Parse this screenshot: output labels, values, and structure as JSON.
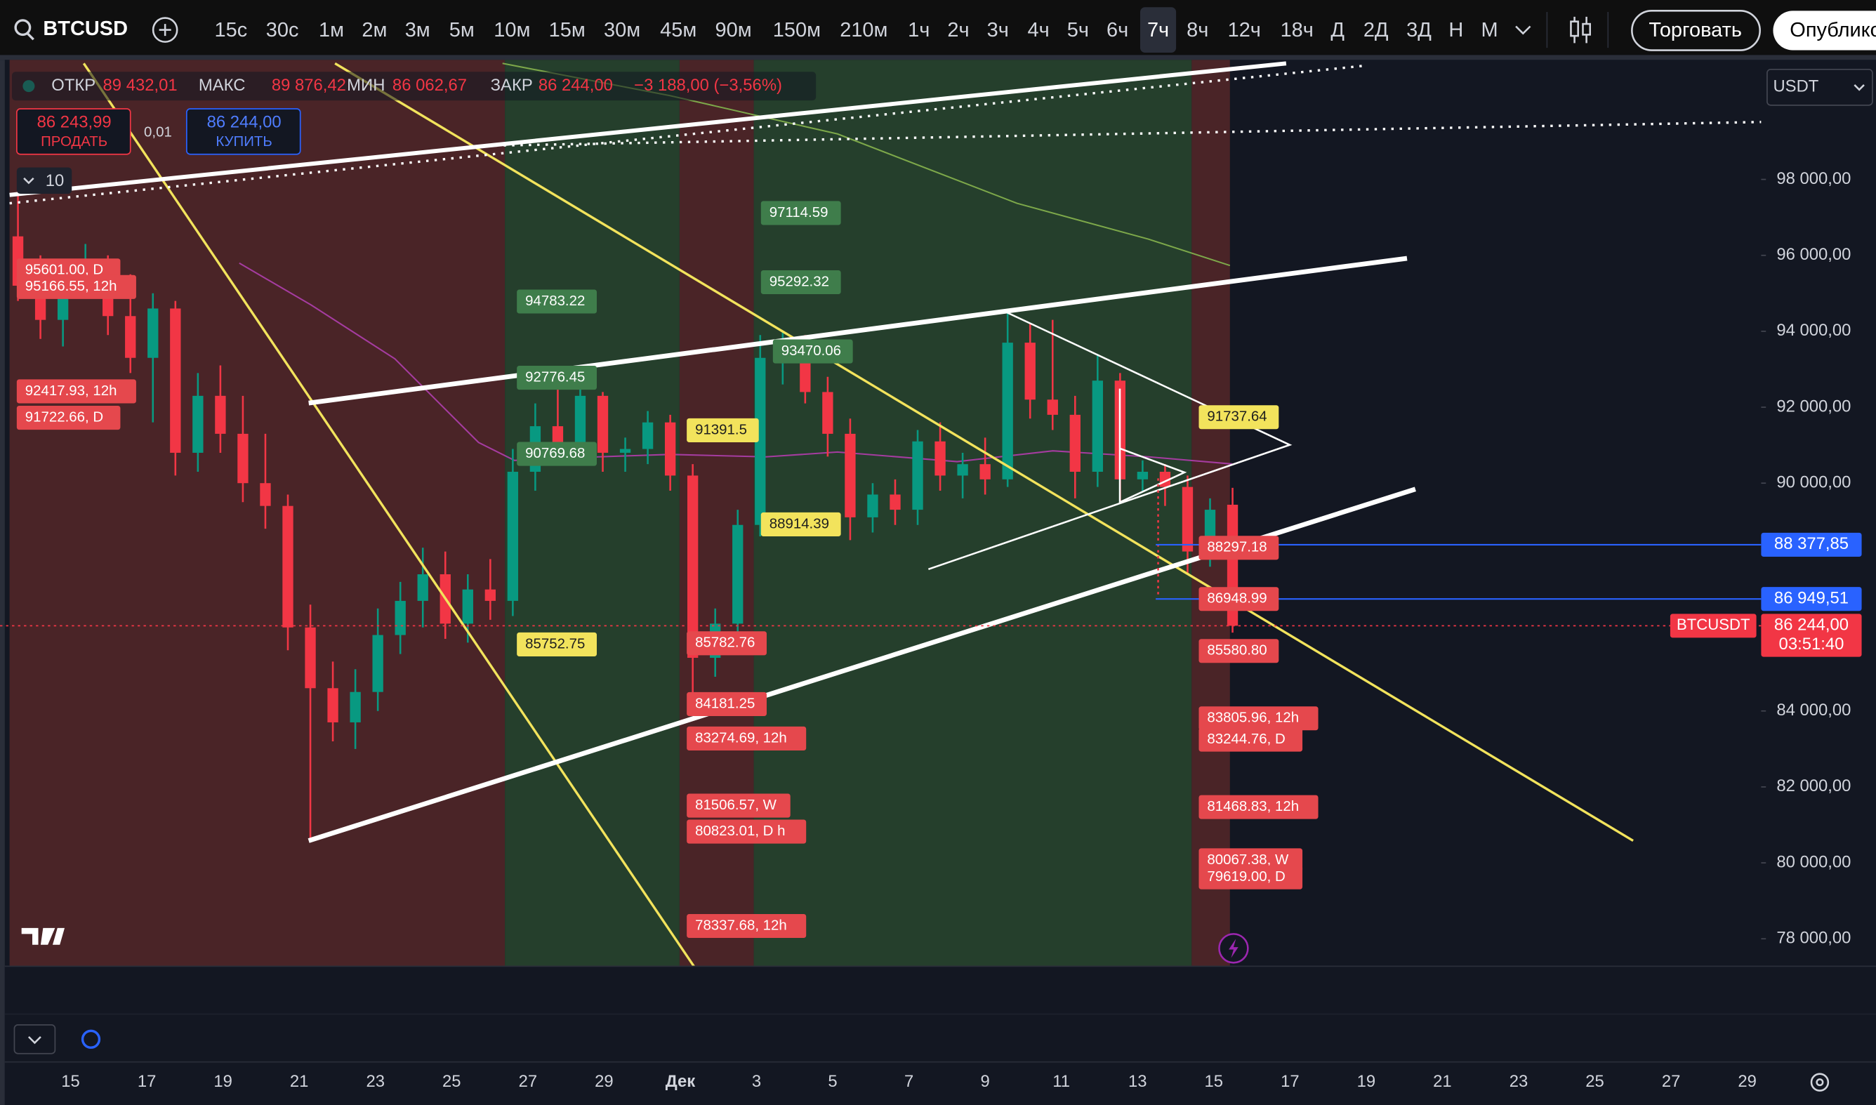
{
  "toolbar": {
    "symbol": "BTCUSD",
    "intervals": [
      "15с",
      "30с",
      "1м",
      "2м",
      "3м",
      "5м",
      "10м",
      "15м",
      "30м",
      "45м",
      "90м",
      "150м",
      "210м",
      "1ч",
      "2ч",
      "3ч",
      "4ч",
      "5ч",
      "6ч",
      "7ч",
      "8ч",
      "12ч",
      "18ч",
      "Д",
      "2Д",
      "3Д",
      "Н",
      "М"
    ],
    "active_interval": 19,
    "trade_button": "Торговать",
    "publish_button": "Опубликовать"
  },
  "legend": {
    "open_label": "ОТКР",
    "open": "89 432,01",
    "high_label": "МАКС",
    "high": "89 876,42",
    "low_label": "МИН",
    "low": "86 062,67",
    "close_label": "ЗАКР",
    "close": "86 244,00",
    "change": "−3 188,00 (−3,56%)"
  },
  "order_panel": {
    "sell_price": "86 243,99",
    "sell_label": "ПРОДАТЬ",
    "spread": "0,01",
    "buy_price": "86 244,00",
    "buy_label": "КУПИТЬ"
  },
  "indicator_toggle": "10",
  "currency": "USDT",
  "price_axis": {
    "ylim": [
      77276,
      101213
    ],
    "ticks": [
      {
        "value": 98000,
        "label": "98 000,00"
      },
      {
        "value": 96000,
        "label": "96 000,00"
      },
      {
        "value": 94000,
        "label": "94 000,00"
      },
      {
        "value": 92000,
        "label": "92 000,00"
      },
      {
        "value": 90000,
        "label": "90 000,00"
      },
      {
        "value": 84000,
        "label": "84 000,00"
      },
      {
        "value": 82000,
        "label": "82 000,00"
      },
      {
        "value": 80000,
        "label": "80 000,00"
      },
      {
        "value": 78000,
        "label": "78 000,00"
      }
    ],
    "alert_lines": [
      {
        "value": 88377.85,
        "label": "88 377,85"
      },
      {
        "value": 86949.51,
        "label": "86 949,51"
      }
    ],
    "last_price": {
      "symbol": "BTCUSDT",
      "value": 86244,
      "label": "86 244,00",
      "countdown": "03:51:40"
    }
  },
  "colors": {
    "up": "#089981",
    "down": "#f23645",
    "green": "#3f7d4b",
    "yellow": "#f2e35c",
    "red": "#e5484d",
    "alert": "#2962ff"
  },
  "price_tags": [
    {
      "label": "97114.59",
      "value": 97114.59,
      "style": "green"
    },
    {
      "label": "95292.32",
      "value": 95292.32,
      "style": "green"
    },
    {
      "label": "94783.22",
      "value": 94783.22,
      "style": "green"
    },
    {
      "label": "92776.45",
      "value": 92776.45,
      "style": "green"
    },
    {
      "label": "93470.06",
      "value": 93470.06,
      "style": "green"
    },
    {
      "label": "90769.68",
      "value": 90769.68,
      "style": "green"
    },
    {
      "label": "91391.5",
      "value": 91391.5,
      "style": "yellow"
    },
    {
      "label": "88914.39",
      "value": 88914.39,
      "style": "yellow"
    },
    {
      "label": "85752.75",
      "value": 85752.75,
      "style": "yellow"
    },
    {
      "label": "91737.64",
      "value": 91737.64,
      "style": "yellow"
    },
    {
      "label": "95601.00, D",
      "value": 95601.0,
      "style": "red"
    },
    {
      "label": "95166.55, 12h",
      "value": 95166.55,
      "style": "red"
    },
    {
      "label": "92417.93, 12h",
      "value": 92417.93,
      "style": "red"
    },
    {
      "label": "91722.66, D",
      "value": 91722.66,
      "style": "red"
    },
    {
      "label": "85782.76",
      "value": 85782.76,
      "style": "red"
    },
    {
      "label": "84181.25",
      "value": 84181.25,
      "style": "red"
    },
    {
      "label": "83274.69, 12h",
      "value": 83274.69,
      "style": "red"
    },
    {
      "label": "81506.57, W",
      "value": 81506.57,
      "style": "red"
    },
    {
      "label": "80823.01, D h",
      "value": 80823.01,
      "style": "red"
    },
    {
      "label": "78337.68, 12h",
      "value": 78337.68,
      "style": "red"
    },
    {
      "label": "88297.18",
      "value": 88297.18,
      "style": "red"
    },
    {
      "label": "86948.99",
      "value": 86948.99,
      "style": "red"
    },
    {
      "label": "85580.80",
      "value": 85580.8,
      "style": "red"
    },
    {
      "label": "83805.96, 12h",
      "value": 83805.96,
      "style": "red"
    },
    {
      "label": "83244.76, D",
      "value": 83244.76,
      "style": "red"
    },
    {
      "label": "81468.83, 12h",
      "value": 81468.83,
      "style": "red"
    },
    {
      "label": "80067.38, W",
      "value": 80067.38,
      "style": "red"
    },
    {
      "label": "79619.00, D",
      "value": 79619.0,
      "style": "red"
    }
  ],
  "candles": [
    [
      96500,
      97900,
      94800,
      95200
    ],
    [
      95200,
      96000,
      93800,
      94300
    ],
    [
      94300,
      95800,
      93600,
      95400
    ],
    [
      95400,
      96300,
      94900,
      95700
    ],
    [
      95700,
      96000,
      93900,
      94400
    ],
    [
      94400,
      95500,
      92900,
      93300
    ],
    [
      93300,
      95000,
      91600,
      94600
    ],
    [
      94600,
      94800,
      90200,
      90800
    ],
    [
      90800,
      92900,
      90300,
      92300
    ],
    [
      92300,
      93100,
      90800,
      91300
    ],
    [
      91300,
      92300,
      89500,
      90000
    ],
    [
      90000,
      91300,
      88800,
      89400
    ],
    [
      89400,
      89700,
      85600,
      86200
    ],
    [
      86200,
      86800,
      80600,
      84600
    ],
    [
      84600,
      85300,
      83200,
      83700
    ],
    [
      83700,
      85100,
      83000,
      84500
    ],
    [
      84500,
      86700,
      84000,
      86000
    ],
    [
      86000,
      87400,
      85500,
      86900
    ],
    [
      86900,
      88300,
      86200,
      87600
    ],
    [
      87600,
      88200,
      85900,
      86300
    ],
    [
      86300,
      87600,
      85800,
      87200
    ],
    [
      87200,
      88000,
      86400,
      86900
    ],
    [
      86900,
      90900,
      86500,
      90300
    ],
    [
      90300,
      92100,
      89800,
      91500
    ],
    [
      91500,
      92500,
      90600,
      90900
    ],
    [
      90900,
      92800,
      90500,
      92300
    ],
    [
      92300,
      92400,
      90300,
      90800
    ],
    [
      90800,
      91200,
      90300,
      90900
    ],
    [
      90900,
      91900,
      90500,
      91600
    ],
    [
      91600,
      91800,
      89800,
      90200
    ],
    [
      90200,
      90500,
      84200,
      85400
    ],
    [
      85400,
      86700,
      84900,
      86300
    ],
    [
      86300,
      89300,
      86000,
      88900
    ],
    [
      88900,
      93900,
      88600,
      93300
    ],
    [
      93300,
      94000,
      92600,
      93600
    ],
    [
      93600,
      93900,
      92100,
      92400
    ],
    [
      92400,
      92800,
      90700,
      91300
    ],
    [
      91300,
      91700,
      88500,
      89100
    ],
    [
      89100,
      90000,
      88700,
      89700
    ],
    [
      89700,
      90100,
      88900,
      89300
    ],
    [
      89300,
      91400,
      88900,
      91100
    ],
    [
      91100,
      91600,
      89800,
      90200
    ],
    [
      90200,
      90800,
      89600,
      90500
    ],
    [
      90500,
      91200,
      89700,
      90100
    ],
    [
      90100,
      94500,
      89900,
      93700
    ],
    [
      93700,
      94200,
      91700,
      92200
    ],
    [
      92200,
      94300,
      91400,
      91800
    ],
    [
      91800,
      92300,
      89600,
      90300
    ],
    [
      90300,
      93400,
      89900,
      92700
    ],
    [
      92700,
      92900,
      89500,
      90100
    ],
    [
      90100,
      90600,
      89800,
      90300
    ],
    [
      90300,
      90500,
      89400,
      89900
    ],
    [
      89900,
      90200,
      87600,
      88200
    ],
    [
      88200,
      89600,
      87800,
      89300
    ],
    [
      89432.01,
      89876.42,
      86062.67,
      86244
    ]
  ],
  "time_axis": [
    "15",
    "17",
    "19",
    "21",
    "23",
    "25",
    "27",
    "29",
    "Дек",
    "3",
    "5",
    "7",
    "9",
    "11",
    "13",
    "15",
    "17",
    "19",
    "21",
    "23",
    "25",
    "27",
    "29"
  ]
}
